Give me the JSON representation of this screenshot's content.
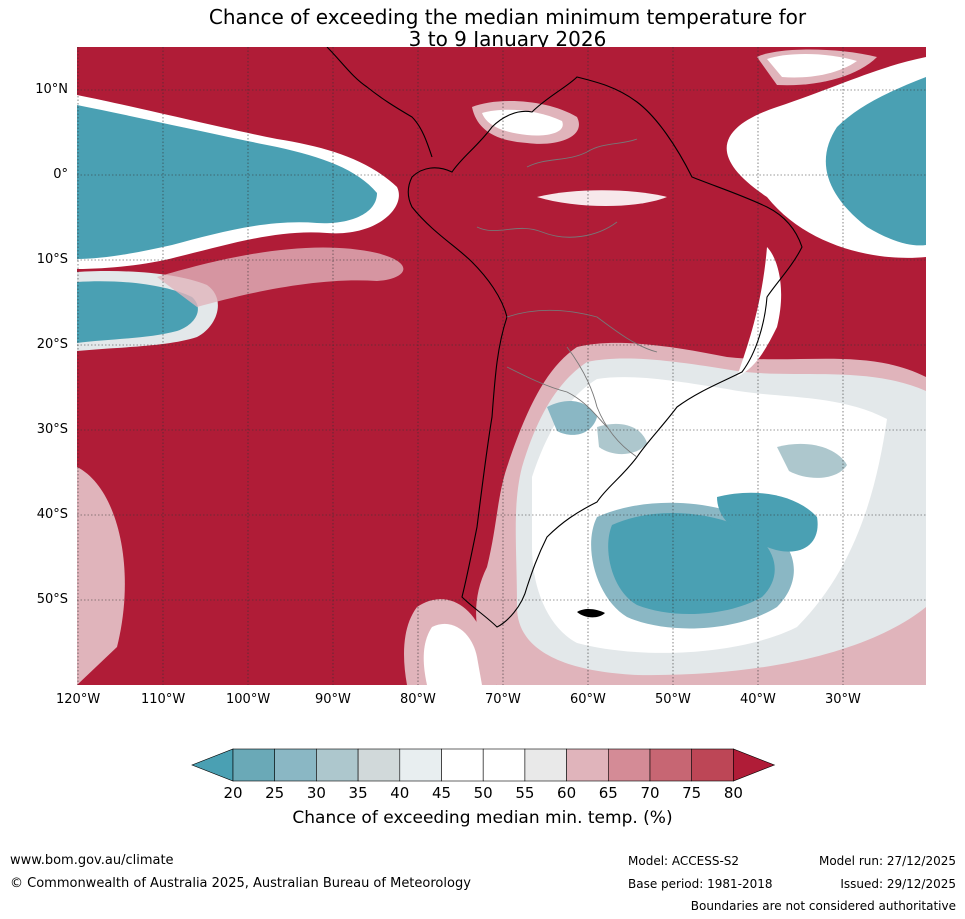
{
  "title": {
    "line1": "Chance of exceeding the median minimum temperature for",
    "line2": "3 to 9 January 2026"
  },
  "axes": {
    "lat_labels": [
      "10°N",
      "0°",
      "10°S",
      "20°S",
      "30°S",
      "40°S",
      "50°S"
    ],
    "lon_labels": [
      "120°W",
      "110°W",
      "100°W",
      "90°W",
      "80°W",
      "70°W",
      "60°W",
      "50°W",
      "40°W",
      "30°W"
    ]
  },
  "colorbar": {
    "ticks": [
      "20",
      "25",
      "30",
      "35",
      "40",
      "45",
      "50",
      "55",
      "60",
      "65",
      "70",
      "75",
      "80"
    ],
    "colors": [
      "#4aa0b3",
      "#6aa9b7",
      "#8ab7c4",
      "#adc7cd",
      "#d1d9da",
      "#e8eef0",
      "#ffffff",
      "#ffffff",
      "#e9e9e9",
      "#e0b4bb",
      "#d48b96",
      "#c76673",
      "#bd4656",
      "#b01c37"
    ],
    "label": "Chance of exceeding median min. temp. (%)"
  },
  "map_colors": {
    "warm": "#b01c37",
    "warm_mid": "#c76673",
    "warm_light": "#e0b4bb",
    "cool": "#4aa0b3",
    "neutral": "#ffffff",
    "neutral_grey": "#e3e8ea"
  },
  "footer": {
    "url": "www.bom.gov.au/climate",
    "copyright": "© Commonwealth of Australia 2025, Australian Bureau of Meteorology",
    "model": "Model: ACCESS-S2",
    "base_period": "Base period: 1981-2018",
    "model_run": "Model run: 27/12/2025",
    "issued": "Issued: 29/12/2025",
    "disclaimer": "Boundaries are not considered authoritative"
  }
}
